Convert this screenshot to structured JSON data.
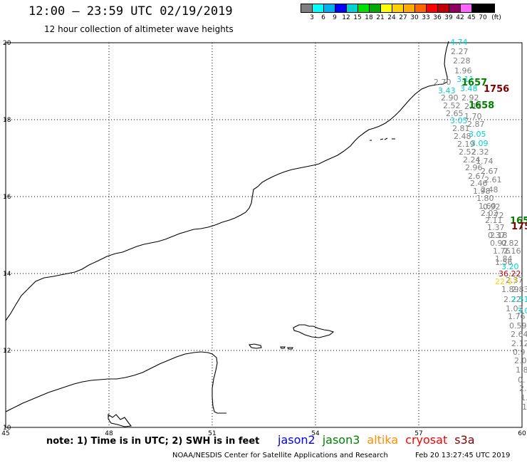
{
  "header": {
    "title": "12:00 – 23:59 UTC 02/19/2019",
    "subtitle": "12 hour collection of altimeter wave heights"
  },
  "scale": {
    "unit": "(ft)",
    "labels": [
      "3",
      "6",
      "9",
      "12",
      "15",
      "18",
      "21",
      "24",
      "27",
      "30",
      "33",
      "36",
      "39",
      "42",
      "45",
      "70"
    ],
    "colors": [
      "#7f7f7f",
      "#00ffff",
      "#00b0f0",
      "#0000ff",
      "#00d2d2",
      "#00e000",
      "#00aa00",
      "#ffff00",
      "#ffd000",
      "#ffaa00",
      "#ff6600",
      "#ff0000",
      "#c00000",
      "#900060",
      "#ff66ff",
      "#000000",
      "#000000"
    ]
  },
  "axes": {
    "lon_labels": [
      "45",
      "48",
      "51",
      "54",
      "57",
      "60"
    ],
    "lat_labels": [
      "20",
      "18",
      "16",
      "14",
      "12",
      "10"
    ]
  },
  "map": {
    "swh_labels": [
      {
        "text": "4.74",
        "color": "#00d2d2"
      },
      {
        "text": "2.27",
        "color": "#7f7f7f"
      },
      {
        "text": "2.28",
        "color": "#7f7f7f"
      },
      {
        "text": "1.96",
        "color": "#7f7f7f"
      },
      {
        "text": "3.11",
        "color": "#00d2d2"
      },
      {
        "text": "2.70",
        "color": "#7f7f7f"
      },
      {
        "text": "1657",
        "color": "#008000"
      },
      {
        "text": "3.48",
        "color": "#00d2d2"
      },
      {
        "text": "3.43",
        "color": "#00d2d2"
      },
      {
        "text": "1756",
        "color": "#800000"
      },
      {
        "text": "2.90",
        "color": "#7f7f7f"
      },
      {
        "text": "2.92",
        "color": "#7f7f7f"
      },
      {
        "text": "2.52",
        "color": "#7f7f7f"
      },
      {
        "text": "2.15",
        "color": "#7f7f7f"
      },
      {
        "text": "1658",
        "color": "#008000"
      },
      {
        "text": "2.65",
        "color": "#7f7f7f"
      },
      {
        "text": "1.70",
        "color": "#7f7f7f"
      },
      {
        "text": "3.05",
        "color": "#00d2d2"
      },
      {
        "text": "2.87",
        "color": "#7f7f7f"
      },
      {
        "text": "2.81",
        "color": "#7f7f7f"
      },
      {
        "text": "3.05",
        "color": "#00d2d2"
      },
      {
        "text": "2.48",
        "color": "#7f7f7f"
      },
      {
        "text": "3.09",
        "color": "#00d2d2"
      },
      {
        "text": "2.19",
        "color": "#7f7f7f"
      },
      {
        "text": "2.52",
        "color": "#7f7f7f"
      },
      {
        "text": "2.32",
        "color": "#7f7f7f"
      },
      {
        "text": "2.24",
        "color": "#7f7f7f"
      },
      {
        "text": "1.74",
        "color": "#7f7f7f"
      },
      {
        "text": "2.96",
        "color": "#7f7f7f"
      },
      {
        "text": "2.67",
        "color": "#7f7f7f"
      },
      {
        "text": "2.67",
        "color": "#7f7f7f"
      },
      {
        "text": "2.61",
        "color": "#7f7f7f"
      },
      {
        "text": "2.46",
        "color": "#7f7f7f"
      },
      {
        "text": "1.98",
        "color": "#7f7f7f"
      },
      {
        "text": "2.48",
        "color": "#7f7f7f"
      },
      {
        "text": "1.80",
        "color": "#7f7f7f"
      },
      {
        "text": "1.60",
        "color": "#7f7f7f"
      },
      {
        "text": "0.92",
        "color": "#7f7f7f"
      },
      {
        "text": "2.02",
        "color": "#7f7f7f"
      },
      {
        "text": "1.72",
        "color": "#7f7f7f"
      },
      {
        "text": "165",
        "color": "#008000"
      },
      {
        "text": "2.11",
        "color": "#7f7f7f"
      },
      {
        "text": "175",
        "color": "#800000"
      },
      {
        "text": "1.37",
        "color": "#7f7f7f"
      },
      {
        "text": "0.37",
        "color": "#7f7f7f"
      },
      {
        "text": "2.18",
        "color": "#7f7f7f"
      },
      {
        "text": "0.92",
        "color": "#7f7f7f"
      },
      {
        "text": "0.82",
        "color": "#7f7f7f"
      },
      {
        "text": "1.76",
        "color": "#7f7f7f"
      },
      {
        "text": "2.16",
        "color": "#7f7f7f"
      },
      {
        "text": "1.84",
        "color": "#7f7f7f"
      },
      {
        "text": "1.56",
        "color": "#7f7f7f"
      },
      {
        "text": "3.20",
        "color": "#00d2d2"
      },
      {
        "text": "36.22",
        "color": "#c00000"
      },
      {
        "text": "2.37",
        "color": "#7f7f7f"
      },
      {
        "text": "22.57",
        "color": "#ffd000"
      },
      {
        "text": "1.89",
        "color": "#7f7f7f"
      },
      {
        "text": "2.83",
        "color": "#7f7f7f"
      },
      {
        "text": "2.22",
        "color": "#7f7f7f"
      },
      {
        "text": "2.51",
        "color": "#00d2d2"
      },
      {
        "text": "1.03",
        "color": "#7f7f7f"
      },
      {
        "text": "3.0",
        "color": "#00d2d2"
      },
      {
        "text": "1.76",
        "color": "#7f7f7f"
      },
      {
        "text": "0.59",
        "color": "#7f7f7f"
      },
      {
        "text": "2.64",
        "color": "#7f7f7f"
      },
      {
        "text": "2.12",
        "color": "#7f7f7f"
      },
      {
        "text": "0.9",
        "color": "#7f7f7f"
      },
      {
        "text": "2.0",
        "color": "#7f7f7f"
      },
      {
        "text": "1.8",
        "color": "#7f7f7f"
      },
      {
        "text": "0.",
        "color": "#7f7f7f"
      },
      {
        "text": "2.",
        "color": "#7f7f7f"
      },
      {
        "text": "1.",
        "color": "#7f7f7f"
      },
      {
        "text": "1",
        "color": "#7f7f7f"
      }
    ]
  },
  "footer": {
    "note": "note: 1) Time is in UTC; 2) SWH is in feet",
    "satellites": [
      {
        "name": "jason2",
        "color": "#0000ff"
      },
      {
        "name": "jason3",
        "color": "#008000"
      },
      {
        "name": "altika",
        "color": "#ff8c00"
      },
      {
        "name": "cryosat",
        "color": "#ff0000"
      },
      {
        "name": "s3a",
        "color": "#800000"
      }
    ],
    "credit": "NOAA/NESDIS Center for Satellite Applications and Research",
    "timestamp": "Feb 20 13:27:45 UTC 2019"
  }
}
